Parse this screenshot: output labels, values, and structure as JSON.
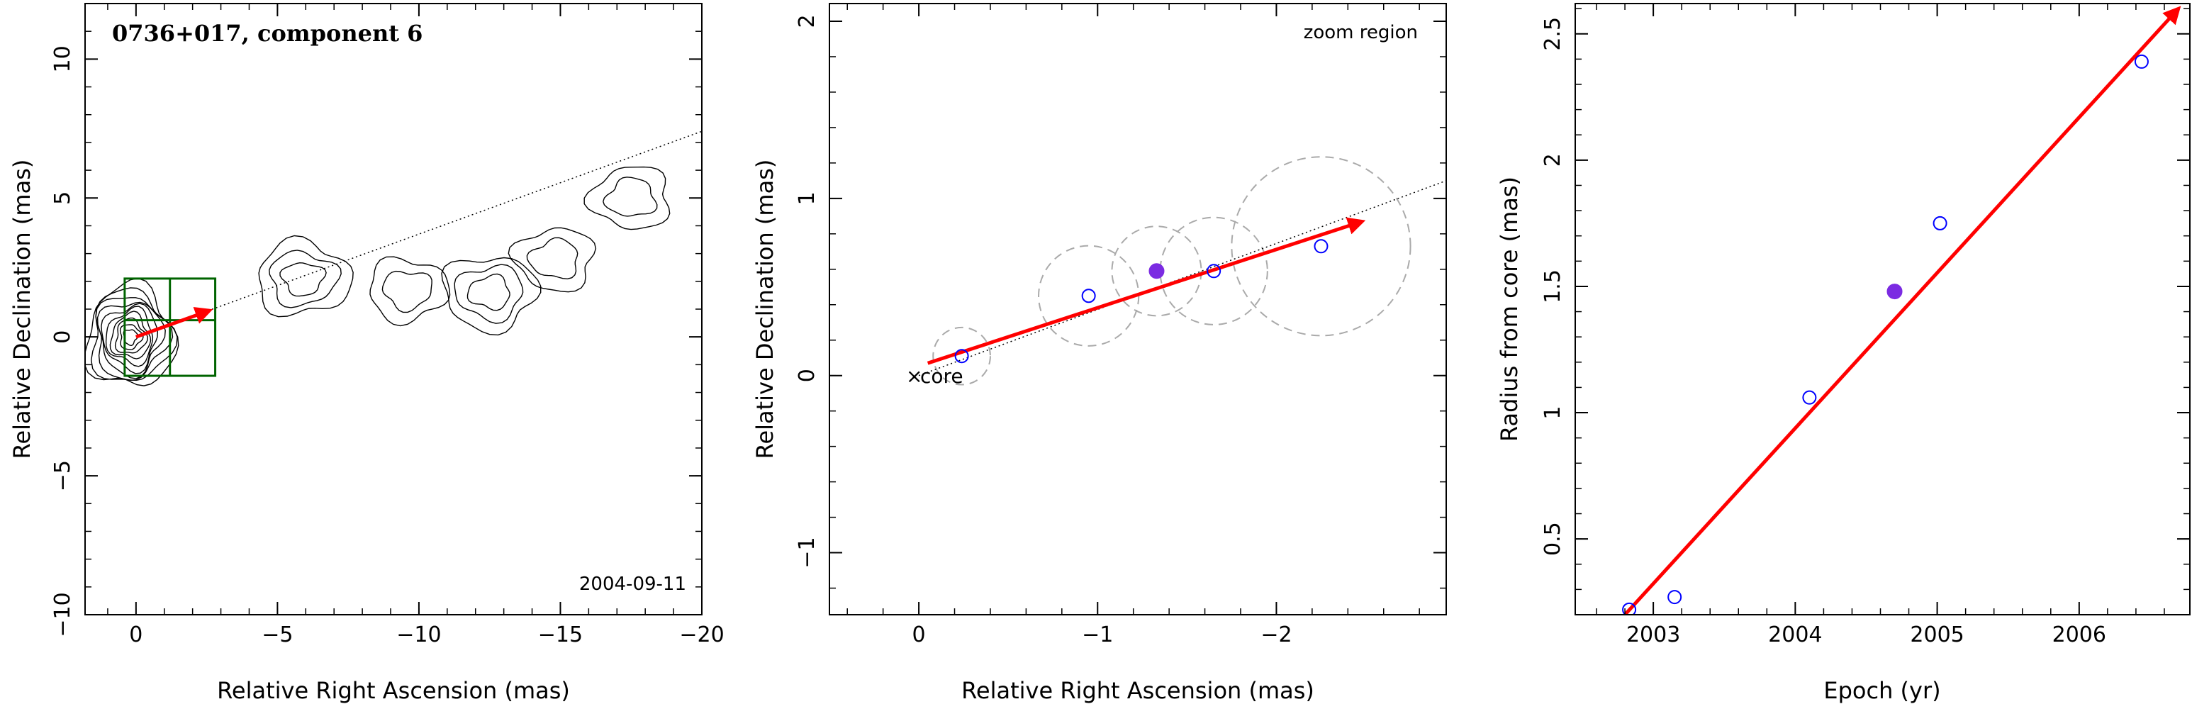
{
  "chart_data": [
    {
      "type": "contour",
      "title": "0736+017, component 6",
      "annotation": "2004-09-11",
      "xlabel": "Relative Right Ascension (mas)",
      "ylabel": "Relative Declination (mas)",
      "xlim": [
        1.8,
        -20
      ],
      "ylim": [
        -10,
        12
      ],
      "xticks": [
        0,
        -5,
        -10,
        -15,
        -20
      ],
      "xtick_labels": [
        "0",
        "−5",
        "−10",
        "−15",
        "−20"
      ],
      "yticks": [
        -10,
        -5,
        0,
        5,
        10
      ],
      "ytick_labels": [
        "−10",
        "−5",
        "0",
        "5",
        "10"
      ],
      "jet_axis_line": {
        "from": [
          0,
          0
        ],
        "to": [
          -20,
          7.4
        ],
        "style": "dotted"
      },
      "velocity_arrow": {
        "from": [
          0,
          0
        ],
        "to": [
          -2.6,
          0.95
        ],
        "color": "#ff0000"
      },
      "zoom_box": {
        "x": [
          0.4,
          -2.8
        ],
        "y": [
          -1.4,
          2.1
        ],
        "color": "#006400"
      },
      "contour_blobs": [
        {
          "center": [
            0.2,
            0.0
          ],
          "levels": 10
        },
        {
          "center": [
            -5.9,
            2.1
          ],
          "levels": 3
        },
        {
          "center": [
            -9.6,
            1.7
          ],
          "levels": 2
        },
        {
          "center": [
            -12.5,
            1.6
          ],
          "levels": 3
        },
        {
          "center": [
            -14.8,
            2.8
          ],
          "levels": 2
        },
        {
          "center": [
            -17.5,
            5.0
          ],
          "levels": 2
        }
      ]
    },
    {
      "type": "scatter",
      "title": "",
      "annotation": "zoom region",
      "core_label": "core",
      "xlabel": "Relative Right Ascension (mas)",
      "ylabel": "Relative Declination (mas)",
      "xlim": [
        0.5,
        -2.95
      ],
      "ylim": [
        -1.35,
        2.1
      ],
      "xticks": [
        0,
        -1,
        -2
      ],
      "xtick_labels": [
        "0",
        "−1",
        "−2"
      ],
      "yticks": [
        -1,
        0,
        1,
        2
      ],
      "ytick_labels": [
        "−1",
        "0",
        "1",
        "2"
      ],
      "points": [
        {
          "x": -0.24,
          "y": 0.11,
          "r": 0.16,
          "filled": false
        },
        {
          "x": -0.95,
          "y": 0.45,
          "r": 0.28,
          "filled": false
        },
        {
          "x": -1.33,
          "y": 0.59,
          "r": 0.25,
          "filled": true
        },
        {
          "x": -1.65,
          "y": 0.59,
          "r": 0.3,
          "filled": false
        },
        {
          "x": -2.25,
          "y": 0.73,
          "r": 0.5,
          "filled": false
        }
      ],
      "fit_line": {
        "from": [
          0,
          0
        ],
        "to": [
          -2.95,
          1.1
        ],
        "style": "dotted"
      },
      "velocity_arrow": {
        "from": [
          -0.05,
          0.07
        ],
        "to": [
          -2.48,
          0.87
        ],
        "color": "#ff0000"
      },
      "marker_colors": {
        "open": "#0000ff",
        "filled": "#7b2be2",
        "circle": "#aaaaaa"
      }
    },
    {
      "type": "scatter",
      "title": "",
      "xlabel": "Epoch (yr)",
      "ylabel": "Radius from core (mas)",
      "xlim": [
        2002.45,
        2006.78
      ],
      "ylim": [
        0.2,
        2.62
      ],
      "xticks": [
        2003,
        2004,
        2005,
        2006
      ],
      "xtick_labels": [
        "2003",
        "2004",
        "2005",
        "2006"
      ],
      "yticks": [
        0.5,
        1,
        1.5,
        2,
        2.5
      ],
      "ytick_labels": [
        "0.5",
        "1",
        "1.5",
        "2",
        "2.5"
      ],
      "points": [
        {
          "x": 2002.83,
          "y": 0.22,
          "filled": false
        },
        {
          "x": 2003.15,
          "y": 0.27,
          "filled": false
        },
        {
          "x": 2004.1,
          "y": 1.06,
          "filled": false
        },
        {
          "x": 2004.7,
          "y": 1.48,
          "filled": true
        },
        {
          "x": 2005.02,
          "y": 1.75,
          "filled": false
        },
        {
          "x": 2006.44,
          "y": 2.39,
          "filled": false
        }
      ],
      "fit_arrow": {
        "from": [
          2002.8,
          0.2
        ],
        "to": [
          2006.7,
          2.6
        ],
        "color": "#ff0000"
      },
      "marker_colors": {
        "open": "#0000ff",
        "filled": "#7b2be2"
      }
    }
  ]
}
